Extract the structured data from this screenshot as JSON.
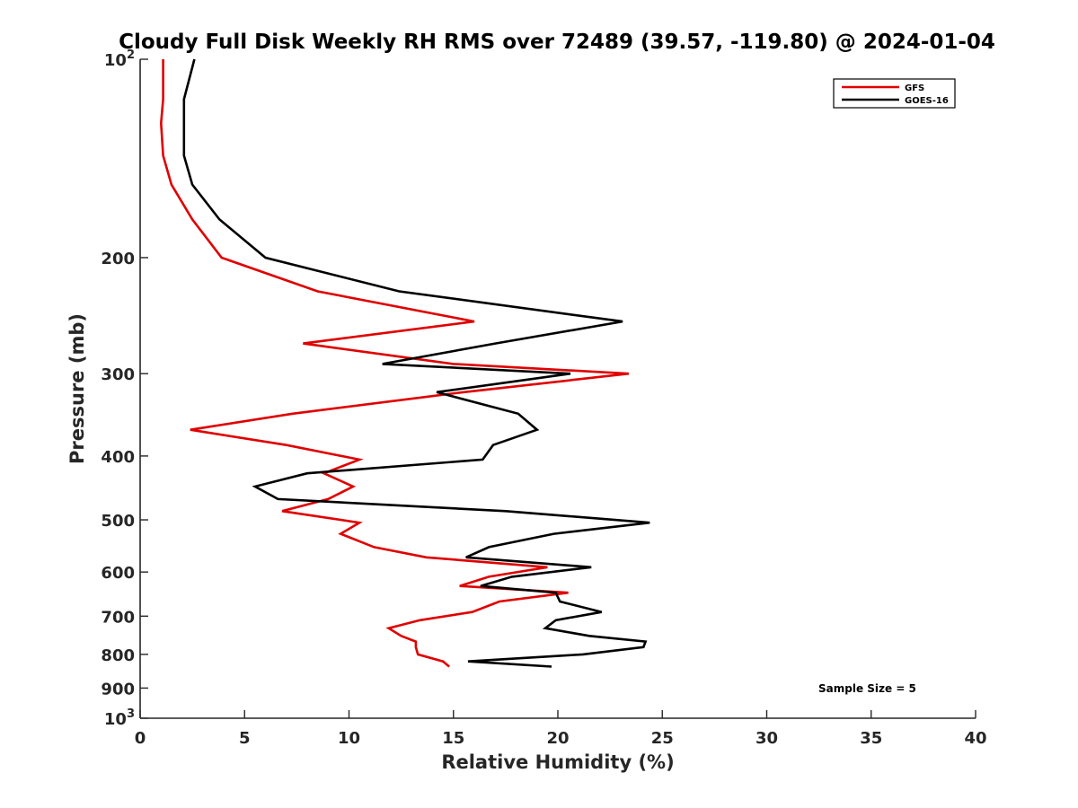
{
  "chart_data": {
    "type": "line",
    "title": "Cloudy Full Disk Weekly RH RMS over 72489 (39.57, -119.80) @ 2024-01-04",
    "xlabel": "Relative Humidity (%)",
    "ylabel": "Pressure (mb)",
    "xlim": [
      0,
      40
    ],
    "ylim": [
      100,
      1000
    ],
    "y_scale": "log",
    "y_reversed": true,
    "x_ticks": [
      0,
      5,
      10,
      15,
      20,
      25,
      30,
      35,
      40
    ],
    "x_tick_labels": [
      "0",
      "5",
      "10",
      "15",
      "20",
      "25",
      "30",
      "35",
      "40"
    ],
    "y_ticks": [
      100,
      200,
      300,
      400,
      500,
      600,
      700,
      800,
      900,
      1000
    ],
    "y_tick_labels": [
      {
        "base": "10",
        "exp": "2"
      },
      {
        "text": "200"
      },
      {
        "text": "300"
      },
      {
        "text": "400"
      },
      {
        "text": "500"
      },
      {
        "text": "600"
      },
      {
        "text": "700"
      },
      {
        "text": "800"
      },
      {
        "text": "900"
      },
      {
        "base": "10",
        "exp": "3"
      }
    ],
    "legend_position": "top-right",
    "series": [
      {
        "name": "GFS",
        "color": "#e00000",
        "points": [
          [
            1.1,
            100
          ],
          [
            1.1,
            115
          ],
          [
            1.0,
            125
          ],
          [
            1.1,
            140
          ],
          [
            1.5,
            155
          ],
          [
            2.5,
            175
          ],
          [
            3.9,
            200
          ],
          [
            8.5,
            225
          ],
          [
            16.0,
            250
          ],
          [
            7.8,
            270
          ],
          [
            15.0,
            290
          ],
          [
            23.4,
            300
          ],
          [
            15.5,
            320
          ],
          [
            7.3,
            345
          ],
          [
            2.4,
            365
          ],
          [
            7.0,
            385
          ],
          [
            10.5,
            405
          ],
          [
            8.8,
            425
          ],
          [
            10.2,
            445
          ],
          [
            9.0,
            465
          ],
          [
            6.8,
            485
          ],
          [
            10.5,
            505
          ],
          [
            9.6,
            525
          ],
          [
            11.2,
            550
          ],
          [
            13.7,
            570
          ],
          [
            19.5,
            590
          ],
          [
            16.7,
            610
          ],
          [
            15.3,
            630
          ],
          [
            20.5,
            645
          ],
          [
            17.2,
            665
          ],
          [
            15.9,
            690
          ],
          [
            13.4,
            710
          ],
          [
            11.9,
            730
          ],
          [
            12.5,
            750
          ],
          [
            13.2,
            765
          ],
          [
            13.2,
            780
          ],
          [
            13.3,
            800
          ],
          [
            14.5,
            820
          ],
          [
            14.8,
            835
          ]
        ]
      },
      {
        "name": "GOES-16",
        "color": "#000000",
        "points": [
          [
            2.6,
            100
          ],
          [
            2.1,
            115
          ],
          [
            2.1,
            125
          ],
          [
            2.1,
            140
          ],
          [
            2.5,
            155
          ],
          [
            3.8,
            175
          ],
          [
            6.0,
            200
          ],
          [
            12.4,
            225
          ],
          [
            23.1,
            250
          ],
          [
            17.0,
            270
          ],
          [
            11.6,
            290
          ],
          [
            20.6,
            300
          ],
          [
            14.2,
            320
          ],
          [
            18.1,
            345
          ],
          [
            19.0,
            365
          ],
          [
            16.9,
            385
          ],
          [
            16.4,
            405
          ],
          [
            8.0,
            425
          ],
          [
            5.5,
            445
          ],
          [
            6.6,
            465
          ],
          [
            17.5,
            485
          ],
          [
            24.4,
            505
          ],
          [
            19.8,
            525
          ],
          [
            16.7,
            550
          ],
          [
            15.6,
            570
          ],
          [
            21.6,
            590
          ],
          [
            17.8,
            610
          ],
          [
            16.3,
            630
          ],
          [
            19.9,
            645
          ],
          [
            20.1,
            665
          ],
          [
            22.1,
            690
          ],
          [
            19.9,
            710
          ],
          [
            19.4,
            730
          ],
          [
            21.5,
            750
          ],
          [
            24.2,
            765
          ],
          [
            24.1,
            780
          ],
          [
            21.2,
            800
          ],
          [
            15.7,
            820
          ],
          [
            19.7,
            835
          ]
        ]
      }
    ],
    "annotation": "Sample Size = 5"
  }
}
